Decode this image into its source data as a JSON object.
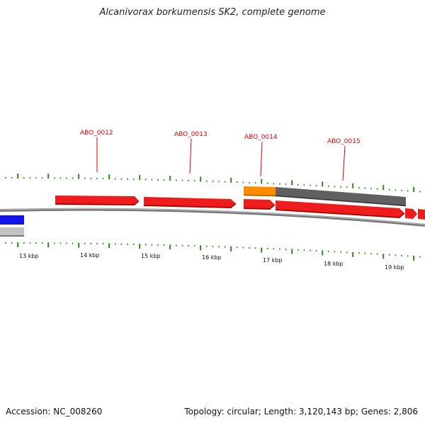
{
  "title": "Alcanivorax borkumensis SK2, complete genome",
  "footer": {
    "accession": "Accession: NC_008260",
    "summary": "Topology: circular; Length: 3,120,143 bp; Genes: 2,806"
  },
  "colors": {
    "cds": "#ee1c1c",
    "cds_shadow": "#a00000",
    "rna": "#ff8c00",
    "grey_feature": "#606060",
    "blue_feature": "#1414e6",
    "light_grey_feature": "#c0c0c0",
    "tick": "#2a8a14",
    "backbone": "#888888",
    "label": "#e00000"
  },
  "scale_labels": [
    "13 kbp",
    "14 kbp",
    "15 kbp",
    "16 kbp",
    "17 kbp",
    "18 kbp",
    "19 kbp"
  ],
  "gene_labels": [
    "ABO_0012",
    "ABO_0013",
    "ABO_0014",
    "ABO_0015"
  ]
}
